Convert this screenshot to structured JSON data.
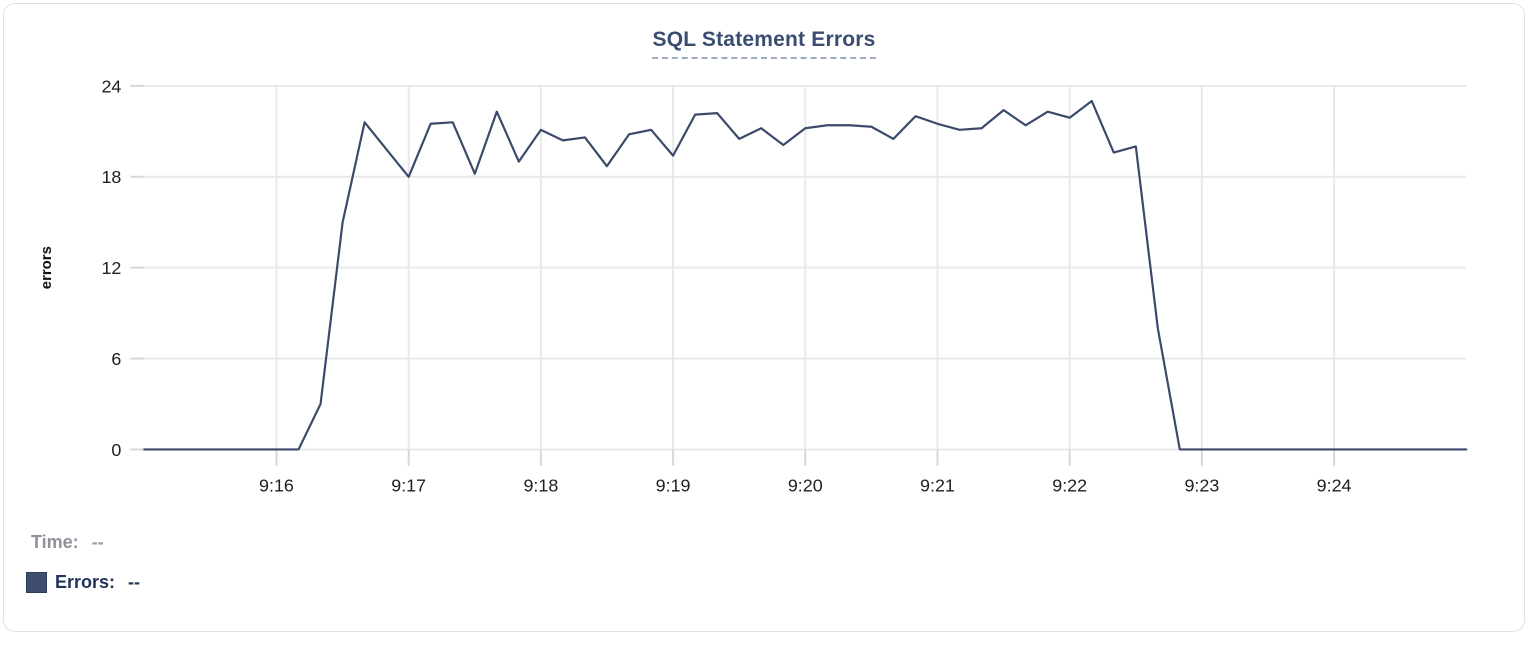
{
  "chart": {
    "title": "SQL Statement Errors",
    "y_axis_label": "errors"
  },
  "legend": {
    "time_label": "Time:",
    "time_value": "--",
    "errors_label": "Errors:",
    "errors_value": "--"
  },
  "colors": {
    "line": "#3b4a6b",
    "grid": "#e9e9e9",
    "tick_mark": "#d7d7d7",
    "tick_text": "#212121",
    "axis_title_text": "#111111",
    "swatch": "#3e4d6e"
  },
  "chart_data": {
    "type": "line",
    "title": "SQL Statement Errors",
    "xlabel": "",
    "ylabel": "errors",
    "ylim": [
      0,
      24
    ],
    "y_ticks": [
      0,
      6,
      12,
      18,
      24
    ],
    "x_tick_labels": [
      "9:16",
      "9:17",
      "9:18",
      "9:19",
      "9:20",
      "9:21",
      "9:22",
      "9:23",
      "9:24"
    ],
    "x_start": "9:15:00",
    "x_end": "9:25:00",
    "interval_seconds": 10,
    "grid": true,
    "legend_position": "bottom-left",
    "series": [
      {
        "name": "Errors",
        "values": [
          0,
          0,
          0,
          0,
          0,
          0,
          0,
          0,
          3,
          15,
          21.6,
          19.8,
          18,
          21.5,
          21.6,
          18.2,
          22.3,
          19,
          21.1,
          20.4,
          20.6,
          18.7,
          20.8,
          21.1,
          19.4,
          22.1,
          22.2,
          20.5,
          21.2,
          20.1,
          21.2,
          21.4,
          21.4,
          21.3,
          20.5,
          22,
          21.5,
          21.1,
          21.2,
          22.4,
          21.4,
          22.3,
          21.9,
          23,
          19.6,
          20,
          8,
          0,
          0,
          0,
          0,
          0,
          0,
          0,
          0,
          0,
          0,
          0,
          0,
          0,
          0
        ]
      }
    ]
  }
}
